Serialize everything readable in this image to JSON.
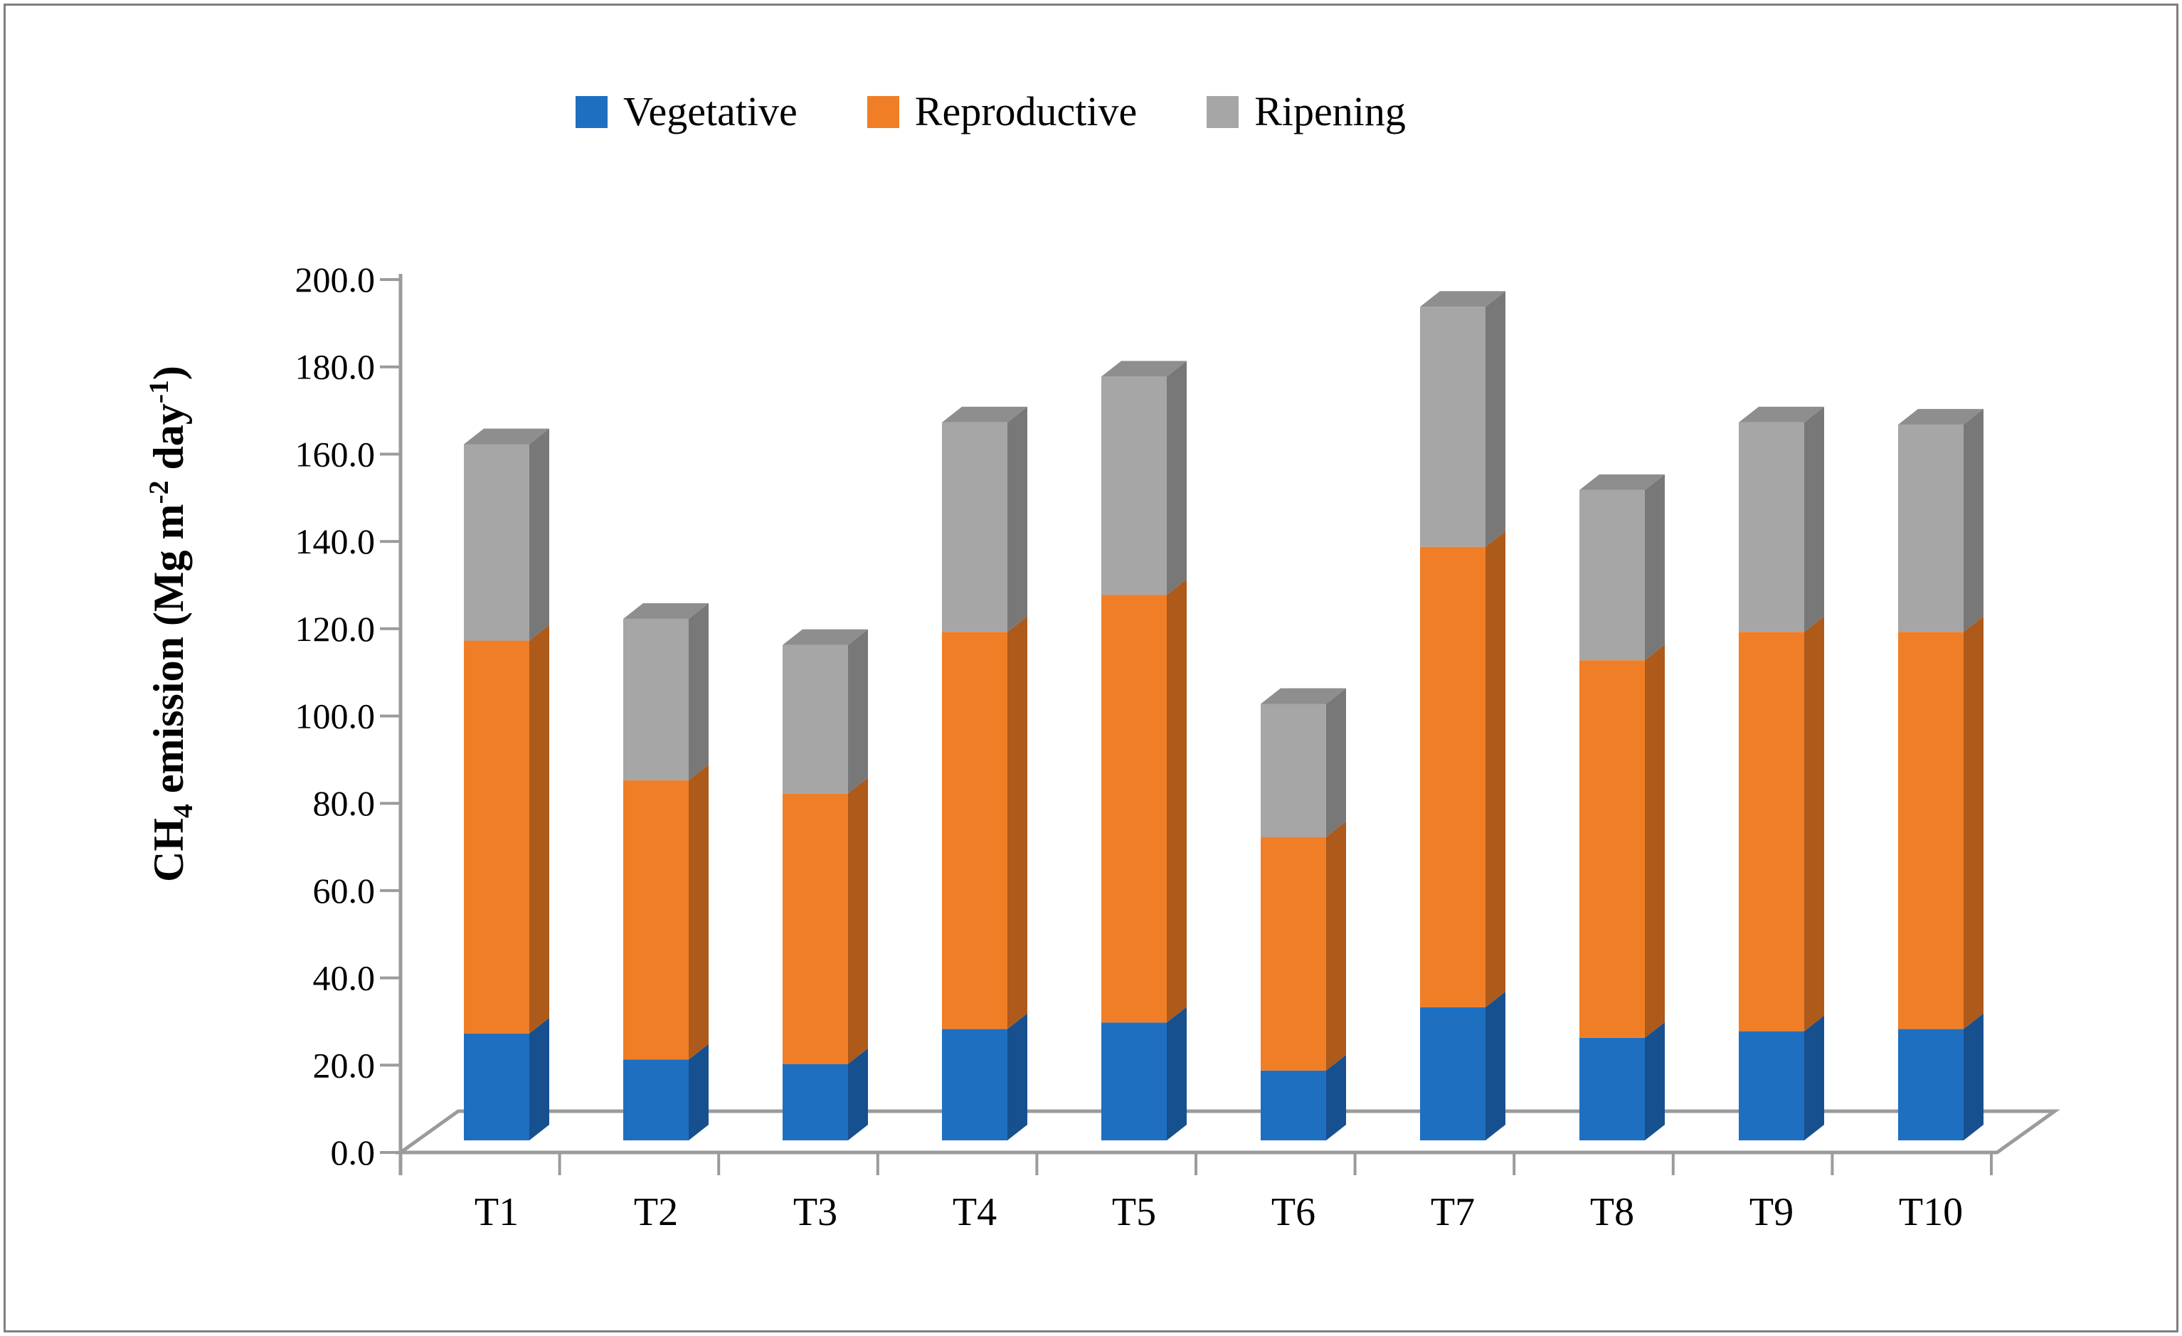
{
  "figure": {
    "background": "#ffffff",
    "border_color": "#7f7f7f"
  },
  "legend": {
    "items": [
      {
        "label": "Vegetative",
        "color": "#1F6FC1"
      },
      {
        "label": "Reproductive",
        "color": "#F07E26"
      },
      {
        "label": "Ripening",
        "color": "#A6A6A6"
      }
    ]
  },
  "y_axis": {
    "title_parts": {
      "pre": "CH",
      "sub": "4",
      "mid": " emission (Mg m",
      "sup1": "-2",
      "mid2": " day",
      "sup2": "-1",
      "post": ")"
    },
    "tick_labels": [
      "200.0",
      "180.0",
      "160.0",
      "140.0",
      "120.0",
      "100.0",
      "80.0",
      "60.0",
      "40.0",
      "20.0",
      "0.0"
    ],
    "tick_values": [
      200,
      180,
      160,
      140,
      120,
      100,
      80,
      60,
      40,
      20,
      0
    ],
    "line_color": "#9b9b9b"
  },
  "x_axis": {
    "categories": [
      "T1",
      "T2",
      "T3",
      "T4",
      "T5",
      "T6",
      "T7",
      "T8",
      "T9",
      "T10"
    ],
    "line_color": "#9b9b9b"
  },
  "chart_data": {
    "type": "bar",
    "subtype": "3d-stacked-column",
    "title": "",
    "xlabel": "",
    "ylabel": "CH4 emission (Mg m-2 day-1)",
    "ylim": [
      0,
      200
    ],
    "grid": false,
    "legend_position": "top",
    "categories": [
      "T1",
      "T2",
      "T3",
      "T4",
      "T5",
      "T6",
      "T7",
      "T8",
      "T9",
      "T10"
    ],
    "series": [
      {
        "name": "Vegetative",
        "color_front": "#1F6FC1",
        "color_side": "#17508F",
        "color_top": "#1A5CA8",
        "values": [
          24.5,
          18.5,
          17.5,
          25.5,
          27.0,
          16.0,
          30.5,
          23.5,
          25.0,
          25.5
        ]
      },
      {
        "name": "Reproductive",
        "color_front": "#F07E26",
        "color_side": "#AD5A1B",
        "color_top": "#C86617",
        "values": [
          90.0,
          64.0,
          62.0,
          91.0,
          98.0,
          53.5,
          105.5,
          86.5,
          91.5,
          91.0
        ]
      },
      {
        "name": "Ripening",
        "color_front": "#A6A6A6",
        "color_side": "#787878",
        "color_top": "#8E8E8E",
        "values": [
          45.0,
          37.0,
          34.0,
          48.0,
          50.0,
          30.5,
          55.0,
          39.0,
          48.0,
          47.5
        ]
      }
    ],
    "totals": [
      159.5,
      119.5,
      113.5,
      164.5,
      175.0,
      100.0,
      191.0,
      149.0,
      164.5,
      164.0
    ]
  }
}
